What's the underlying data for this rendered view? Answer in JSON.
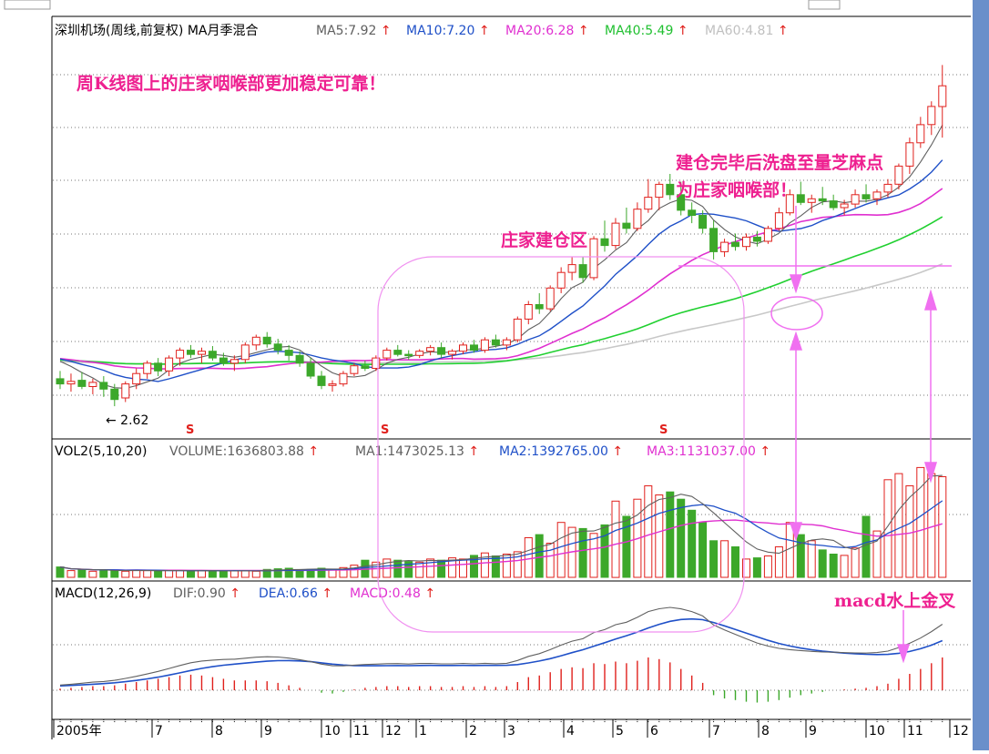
{
  "colors": {
    "up": "#e0201c",
    "down": "#3ca82a",
    "ma5": "#606060",
    "ma10": "#1f50c8",
    "ma20": "#e030d0",
    "ma40": "#20d030",
    "ma60": "#c8c8c8",
    "annotation": "#ee2090",
    "arrow": "#f070f0",
    "grid": "#777777",
    "right_bar": "#6a8fca"
  },
  "header_price": {
    "title": "深圳机场(周线,前复权) MA月季混合",
    "ma5": "MA5:7.92",
    "ma10": "MA10:7.20",
    "ma20": "MA20:6.28",
    "ma40": "MA40:5.49",
    "ma60": "MA60:4.81",
    "arrow_glyph": "↑"
  },
  "header_volume": {
    "title": "VOL2(5,10,20)",
    "volume": "VOLUME:1636803.88",
    "ma1": "MA1:1473025.13",
    "ma2": "MA2:1392765.00",
    "ma3": "MA3:1131037.00"
  },
  "header_macd": {
    "title": "MACD(12,26,9)",
    "dif": "DIF:0.90",
    "dea": "DEA:0.66",
    "macd": "MACD:0.48"
  },
  "annotations": {
    "top": "周K线图上的庄家咽喉部更加稳定可靠！",
    "right_line1": "建仓完毕后洗盘至量芝麻点",
    "right_line2": "为庄家咽喉部！",
    "zone": "庄家建仓区",
    "macd": "macd水上金叉"
  },
  "low_label": "← 2.62",
  "signal_marker": "S",
  "x_axis": {
    "labels": [
      "2005年",
      "7",
      "8",
      "9",
      "10",
      "11",
      "12",
      "1",
      "2",
      "3",
      "4",
      "5",
      "6",
      "7",
      "8",
      "9",
      "10",
      "11",
      "12"
    ]
  },
  "chart_data": [
    {
      "type": "candlestick",
      "title": "深圳机场(周线,前复权) MA月季混合",
      "indicators": {
        "MA5": 7.92,
        "MA10": 7.2,
        "MA20": 6.28,
        "MA40": 5.49,
        "MA60": 4.81
      },
      "ylim": [
        2.2,
        9.4
      ],
      "min_low": 2.62,
      "ohlc": [
        [
          3.15,
          3.3,
          2.95,
          3.05
        ],
        [
          3.05,
          3.25,
          2.9,
          3.1
        ],
        [
          3.12,
          3.28,
          2.95,
          3.0
        ],
        [
          3.0,
          3.15,
          2.85,
          3.08
        ],
        [
          3.08,
          3.2,
          2.8,
          2.95
        ],
        [
          2.95,
          3.05,
          2.62,
          2.75
        ],
        [
          2.78,
          3.1,
          2.7,
          3.05
        ],
        [
          3.05,
          3.35,
          2.95,
          3.25
        ],
        [
          3.25,
          3.5,
          3.15,
          3.45
        ],
        [
          3.45,
          3.55,
          3.2,
          3.3
        ],
        [
          3.3,
          3.6,
          3.2,
          3.55
        ],
        [
          3.55,
          3.75,
          3.4,
          3.7
        ],
        [
          3.7,
          3.8,
          3.55,
          3.62
        ],
        [
          3.62,
          3.75,
          3.45,
          3.68
        ],
        [
          3.68,
          3.78,
          3.5,
          3.55
        ],
        [
          3.55,
          3.65,
          3.4,
          3.45
        ],
        [
          3.45,
          3.6,
          3.3,
          3.52
        ],
        [
          3.52,
          3.85,
          3.45,
          3.8
        ],
        [
          3.8,
          4.0,
          3.7,
          3.95
        ],
        [
          3.95,
          4.05,
          3.75,
          3.82
        ],
        [
          3.82,
          3.92,
          3.62,
          3.7
        ],
        [
          3.7,
          3.8,
          3.5,
          3.6
        ],
        [
          3.6,
          3.68,
          3.38,
          3.45
        ],
        [
          3.45,
          3.55,
          3.15,
          3.2
        ],
        [
          3.2,
          3.3,
          2.95,
          3.02
        ],
        [
          3.02,
          3.12,
          2.9,
          3.05
        ],
        [
          3.05,
          3.3,
          3.0,
          3.25
        ],
        [
          3.25,
          3.45,
          3.2,
          3.4
        ],
        [
          3.4,
          3.5,
          3.3,
          3.35
        ],
        [
          3.35,
          3.6,
          3.3,
          3.55
        ],
        [
          3.55,
          3.75,
          3.5,
          3.7
        ],
        [
          3.7,
          3.8,
          3.58,
          3.62
        ],
        [
          3.62,
          3.7,
          3.52,
          3.6
        ],
        [
          3.6,
          3.72,
          3.55,
          3.68
        ],
        [
          3.68,
          3.8,
          3.6,
          3.75
        ],
        [
          3.75,
          3.85,
          3.55,
          3.62
        ],
        [
          3.62,
          3.72,
          3.52,
          3.68
        ],
        [
          3.68,
          3.85,
          3.62,
          3.8
        ],
        [
          3.8,
          3.9,
          3.65,
          3.7
        ],
        [
          3.7,
          3.95,
          3.65,
          3.9
        ],
        [
          3.9,
          4.0,
          3.75,
          3.8
        ],
        [
          3.8,
          3.95,
          3.7,
          3.9
        ],
        [
          3.9,
          4.35,
          3.85,
          4.3
        ],
        [
          4.3,
          4.65,
          4.2,
          4.58
        ],
        [
          4.58,
          4.8,
          4.4,
          4.5
        ],
        [
          4.5,
          4.95,
          4.45,
          4.9
        ],
        [
          4.9,
          5.3,
          4.8,
          5.2
        ],
        [
          5.2,
          5.5,
          5.05,
          5.35
        ],
        [
          5.35,
          5.5,
          5.0,
          5.1
        ],
        [
          5.1,
          5.9,
          5.05,
          5.85
        ],
        [
          5.85,
          6.2,
          5.6,
          5.72
        ],
        [
          5.72,
          6.25,
          5.65,
          6.15
        ],
        [
          6.15,
          6.45,
          5.95,
          6.05
        ],
        [
          6.05,
          6.55,
          6.0,
          6.42
        ],
        [
          6.42,
          7.0,
          6.35,
          6.65
        ],
        [
          6.65,
          6.95,
          6.4,
          6.9
        ],
        [
          6.9,
          7.1,
          6.6,
          6.7
        ],
        [
          6.7,
          6.95,
          6.3,
          6.4
        ],
        [
          6.4,
          6.55,
          6.15,
          6.3
        ],
        [
          6.3,
          6.4,
          5.95,
          6.05
        ],
        [
          6.05,
          6.2,
          5.45,
          5.6
        ],
        [
          5.6,
          5.85,
          5.5,
          5.78
        ],
        [
          5.78,
          5.95,
          5.62,
          5.7
        ],
        [
          5.7,
          5.95,
          5.62,
          5.88
        ],
        [
          5.88,
          6.0,
          5.7,
          5.8
        ],
        [
          5.8,
          6.1,
          5.75,
          6.05
        ],
        [
          6.05,
          6.45,
          6.0,
          6.35
        ],
        [
          6.35,
          6.8,
          6.3,
          6.7
        ],
        [
          6.7,
          6.95,
          6.5,
          6.55
        ],
        [
          6.55,
          6.7,
          6.35,
          6.62
        ],
        [
          6.62,
          6.85,
          6.5,
          6.58
        ],
        [
          6.58,
          6.7,
          6.4,
          6.45
        ],
        [
          6.45,
          6.6,
          6.3,
          6.52
        ],
        [
          6.52,
          6.8,
          6.45,
          6.7
        ],
        [
          6.7,
          6.9,
          6.55,
          6.62
        ],
        [
          6.62,
          6.8,
          6.5,
          6.75
        ],
        [
          6.75,
          7.0,
          6.65,
          6.9
        ],
        [
          6.9,
          7.3,
          6.8,
          7.25
        ],
        [
          7.25,
          7.8,
          7.1,
          7.7
        ],
        [
          7.7,
          8.2,
          7.6,
          8.05
        ],
        [
          8.05,
          8.5,
          7.85,
          8.4
        ],
        [
          8.4,
          9.2,
          7.8,
          8.8
        ]
      ],
      "x_tick_labels": [
        "2005年",
        "7",
        "8",
        "9",
        "10",
        "11",
        "12",
        "1",
        "2",
        "3",
        "4",
        "5",
        "6",
        "7",
        "8",
        "9",
        "10",
        "11",
        "12"
      ]
    },
    {
      "type": "bar",
      "title": "VOL2(5,10,20)",
      "indicators": {
        "VOLUME": 1636803.88,
        "MA1": 1473025.13,
        "MA2": 1392765.0,
        "MA3": 1131037.0
      },
      "ylim": [
        0,
        2000000
      ],
      "values": [
        170000,
        110000,
        120000,
        100000,
        120000,
        110000,
        100000,
        120000,
        110000,
        100000,
        120000,
        110000,
        100000,
        110000,
        105000,
        100000,
        110000,
        110000,
        100000,
        130000,
        140000,
        150000,
        120000,
        130000,
        150000,
        130000,
        160000,
        200000,
        280000,
        250000,
        300000,
        280000,
        260000,
        250000,
        300000,
        280000,
        320000,
        300000,
        360000,
        400000,
        350000,
        380000,
        420000,
        650000,
        700000,
        560000,
        900000,
        820000,
        800000,
        720000,
        860000,
        1250000,
        1000000,
        1280000,
        1500000,
        1350000,
        1400000,
        1280000,
        1100000,
        900000,
        600000,
        600000,
        500000,
        300000,
        320000,
        350000,
        500000,
        900000,
        700000,
        600000,
        450000,
        380000,
        360000,
        480000,
        1000000,
        760000,
        1600000,
        1700000,
        1500000,
        1800000,
        1700000,
        1650000
      ]
    },
    {
      "type": "bar",
      "title": "MACD(12,26,9)",
      "indicators": {
        "DIF": 0.9,
        "DEA": 0.66,
        "MACD": 0.48
      },
      "ylim": [
        -0.3,
        1.2
      ],
      "values": [
        0.02,
        0.03,
        0.04,
        0.05,
        0.05,
        0.06,
        0.08,
        0.1,
        0.12,
        0.14,
        0.16,
        0.18,
        0.19,
        0.18,
        0.16,
        0.14,
        0.12,
        0.12,
        0.12,
        0.11,
        0.09,
        0.06,
        0.03,
        0.0,
        -0.03,
        -0.04,
        -0.02,
        0.01,
        0.03,
        0.04,
        0.05,
        0.05,
        0.04,
        0.05,
        0.05,
        0.04,
        0.04,
        0.05,
        0.04,
        0.05,
        0.04,
        0.05,
        0.1,
        0.16,
        0.18,
        0.22,
        0.26,
        0.28,
        0.27,
        0.33,
        0.32,
        0.35,
        0.33,
        0.36,
        0.4,
        0.38,
        0.34,
        0.26,
        0.18,
        0.09,
        -0.06,
        -0.1,
        -0.12,
        -0.14,
        -0.15,
        -0.14,
        -0.12,
        -0.09,
        -0.06,
        -0.04,
        -0.02,
        0.0,
        0.01,
        0.02,
        0.03,
        0.05,
        0.08,
        0.14,
        0.2,
        0.26,
        0.33,
        0.4
      ]
    }
  ]
}
